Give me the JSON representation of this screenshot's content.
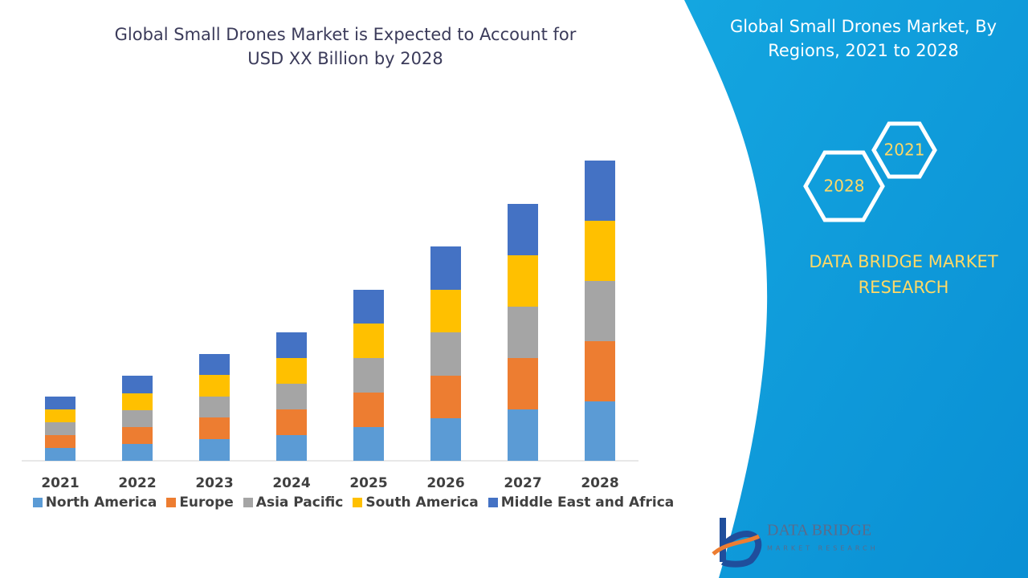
{
  "chart_data": {
    "type": "stacked_bar",
    "title": "Global Small Drones Market is Expected to Account for USD XX Billion by 2028",
    "categories": [
      "2021",
      "2022",
      "2023",
      "2024",
      "2025",
      "2026",
      "2027",
      "2028"
    ],
    "series": [
      {
        "name": "North America",
        "color": "#5b9bd5",
        "values": [
          16,
          21,
          27,
          32,
          42,
          53,
          64,
          74
        ]
      },
      {
        "name": "Europe",
        "color": "#ed7d31",
        "values": [
          16,
          21,
          27,
          32,
          43,
          53,
          64,
          75
        ]
      },
      {
        "name": "Asia Pacific",
        "color": "#a5a5a5",
        "values": [
          16,
          21,
          26,
          32,
          43,
          54,
          64,
          75
        ]
      },
      {
        "name": "South America",
        "color": "#ffc000",
        "values": [
          16,
          21,
          27,
          32,
          43,
          53,
          64,
          75
        ]
      },
      {
        "name": "Middle East and Africa",
        "color": "#4472c4",
        "values": [
          16,
          22,
          26,
          32,
          42,
          54,
          64,
          75
        ]
      }
    ]
  },
  "panel": {
    "title": "Global Small Drones Market, By Regions, 2021 to 2028",
    "hex_small": "2021",
    "hex_large": "2028",
    "brand": "DATA BRIDGE MARKET RESEARCH",
    "logo_name": "DATA BRIDGE",
    "logo_sub": "MARKET RESEARCH"
  }
}
